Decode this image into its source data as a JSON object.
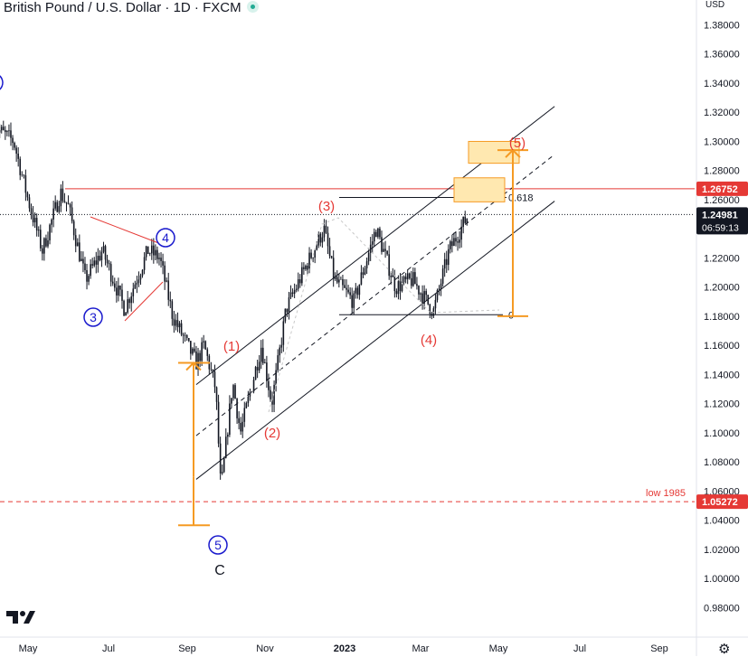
{
  "header": {
    "title": "British Pound / U.S. Dollar · 1D · FXCM",
    "currency": "USD"
  },
  "colors": {
    "price": "#131722",
    "red": "#e53935",
    "blue": "#1a1acd",
    "orange": "#f59a23",
    "zone": "#ffe8b0",
    "grid": "#e6e6e6",
    "axis_text": "#131722",
    "current_bg": "#131722"
  },
  "icons": {
    "logo": "tradingview-logo-icon",
    "settings": "gear-icon"
  },
  "chart_data": {
    "type": "candlestick",
    "symbol": "GBPUSD",
    "interval": "1D",
    "x_ticks": [
      "May",
      "Jul",
      "Sep",
      "Nov",
      "2023",
      "Mar",
      "May",
      "Jul",
      "Sep"
    ],
    "y_ticks": [
      "1.38000",
      "1.36000",
      "1.34000",
      "1.32000",
      "1.30000",
      "1.28000",
      "1.26000",
      "1.24000",
      "1.22000",
      "1.20000",
      "1.18000",
      "1.16000",
      "1.14000",
      "1.12000",
      "1.10000",
      "1.08000",
      "1.06000",
      "1.04000",
      "1.02000",
      "1.00000",
      "0.98000"
    ],
    "ylim": [
      0.97,
      1.385
    ],
    "levels": [
      {
        "label": "1.26752",
        "value": 1.26752,
        "style": "solid-red"
      },
      {
        "label": "1.05272",
        "value": 1.05272,
        "style": "dashed-red",
        "note": "low 1985"
      }
    ],
    "current": {
      "price": "1.24981",
      "value": 1.24981,
      "countdown": "06:59:13"
    },
    "fib": {
      "level_618": "0.618",
      "level_0": "0"
    },
    "wave_labels": {
      "blue": [
        "3",
        "4",
        "5"
      ],
      "red": [
        "(1)",
        "(2)",
        "(3)",
        "(4)",
        "(5)"
      ],
      "black": [
        "C"
      ]
    },
    "price_path": [
      [
        "2022-04-05",
        1.31
      ],
      [
        "2022-04-20",
        1.3
      ],
      [
        "2022-05-01",
        1.26
      ],
      [
        "2022-05-12",
        1.225
      ],
      [
        "2022-05-26",
        1.265
      ],
      [
        "2022-06-01",
        1.255
      ],
      [
        "2022-06-14",
        1.205
      ],
      [
        "2022-06-27",
        1.225
      ],
      [
        "2022-07-14",
        1.185
      ],
      [
        "2022-08-01",
        1.225
      ],
      [
        "2022-08-10",
        1.22
      ],
      [
        "2022-08-20",
        1.18
      ],
      [
        "2022-09-07",
        1.148
      ],
      [
        "2022-09-13",
        1.16
      ],
      [
        "2022-09-22",
        1.13
      ],
      [
        "2022-09-26",
        1.06
      ],
      [
        "2022-10-05",
        1.135
      ],
      [
        "2022-10-11",
        1.1
      ],
      [
        "2022-10-27",
        1.16
      ],
      [
        "2022-11-04",
        1.12
      ],
      [
        "2022-11-15",
        1.185
      ],
      [
        "2022-11-28",
        1.21
      ],
      [
        "2022-12-14",
        1.24
      ],
      [
        "2022-12-22",
        1.205
      ],
      [
        "2023-01-06",
        1.19
      ],
      [
        "2023-01-23",
        1.24
      ],
      [
        "2023-02-07",
        1.2
      ],
      [
        "2023-02-20",
        1.205
      ],
      [
        "2023-03-08",
        1.183
      ],
      [
        "2023-03-20",
        1.225
      ],
      [
        "2023-04-04",
        1.25
      ]
    ]
  }
}
